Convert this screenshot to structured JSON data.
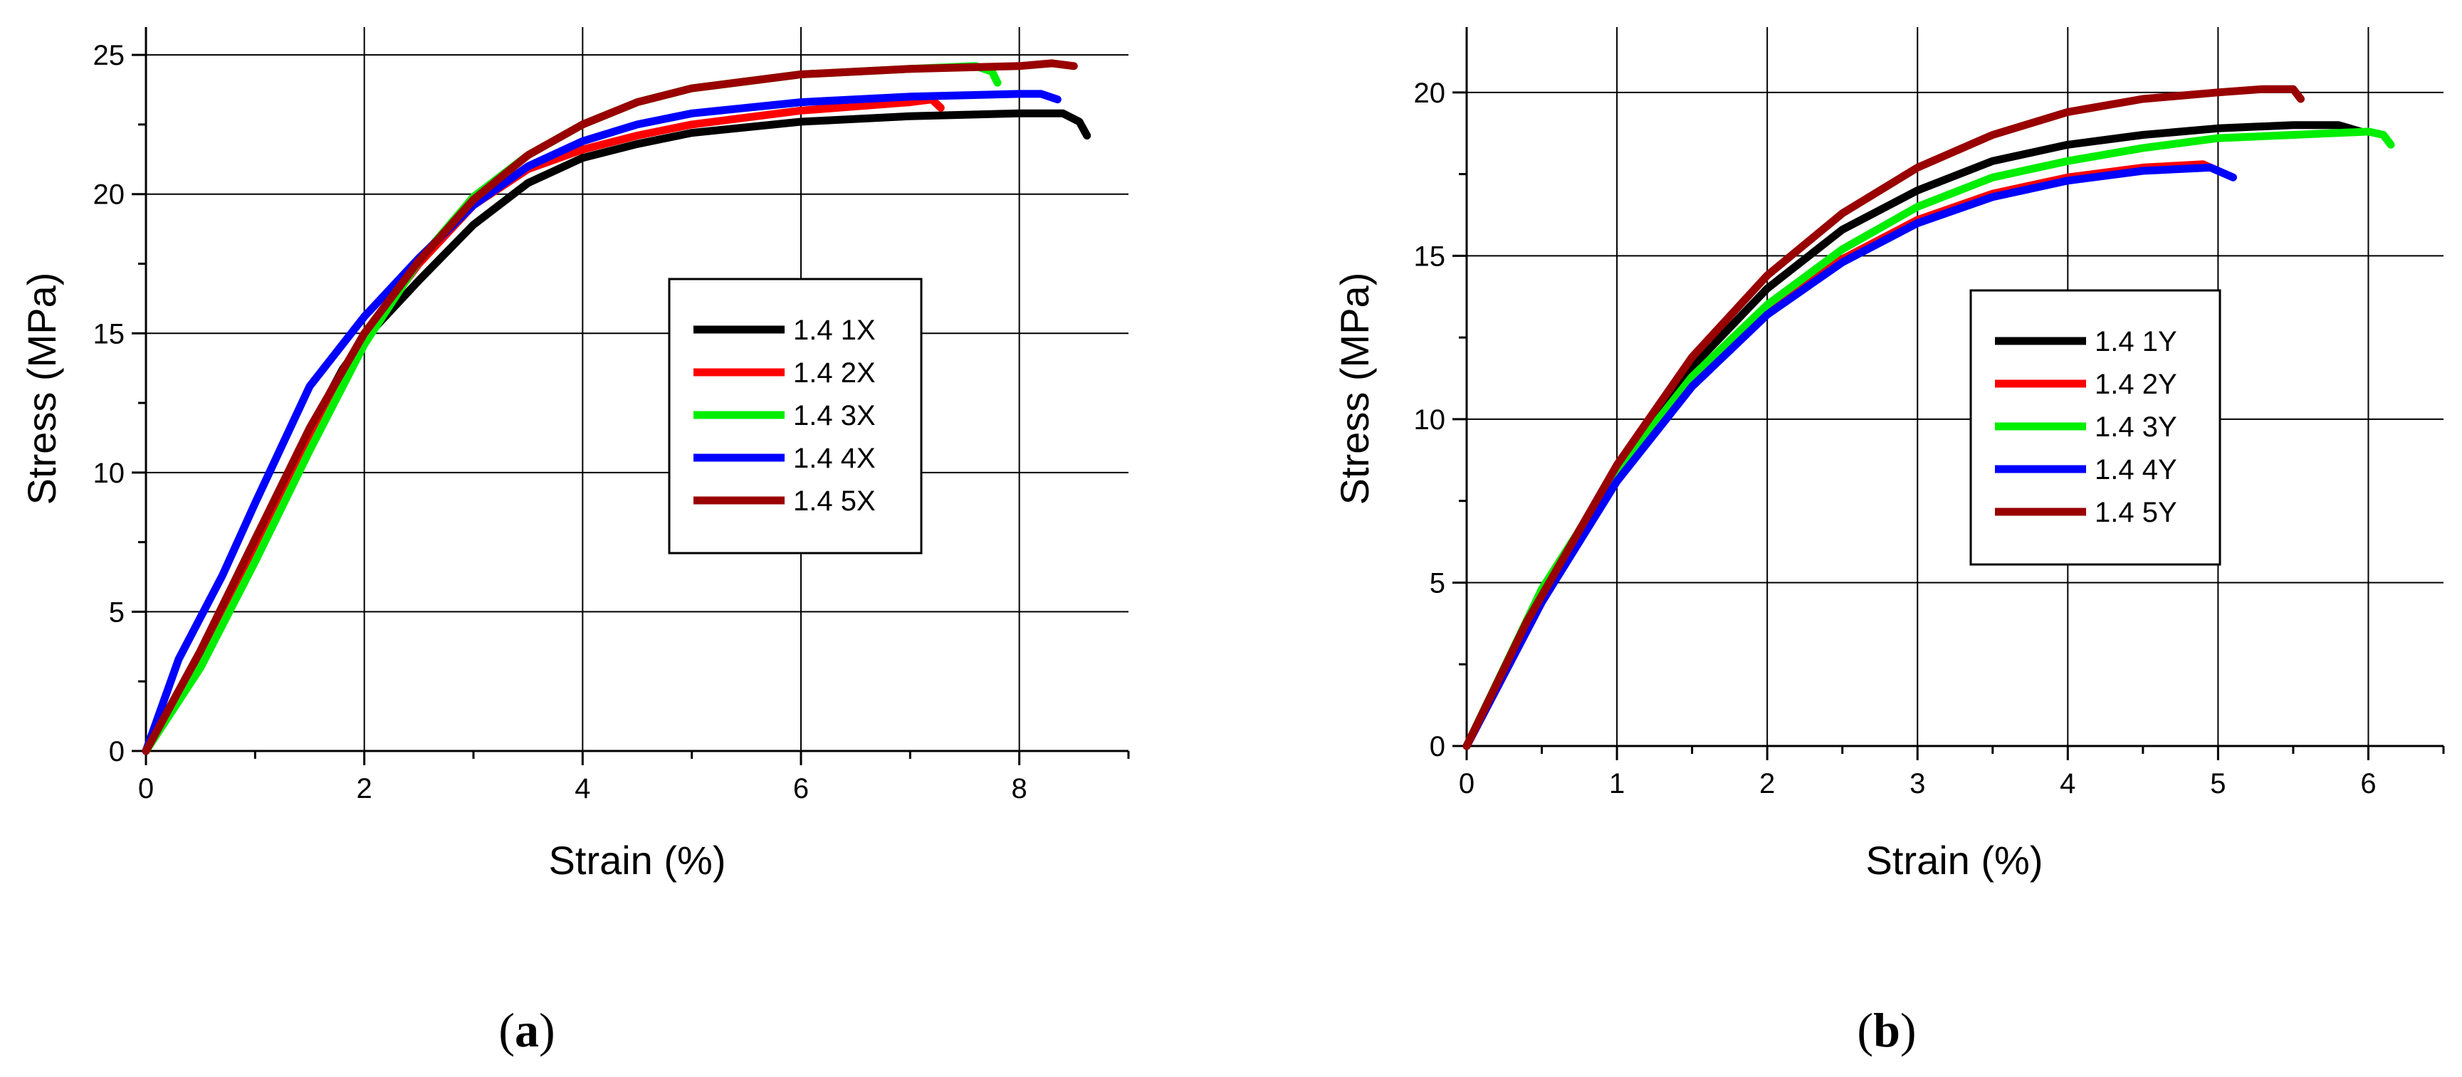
{
  "chart_data": [
    {
      "type": "line",
      "panel": "a",
      "xlabel": "Strain (%)",
      "ylabel": "Stress (MPa)",
      "xlim": [
        0,
        9
      ],
      "ylim": [
        0,
        26
      ],
      "xticks": [
        0,
        2,
        4,
        6,
        8
      ],
      "yticks": [
        0,
        5,
        10,
        15,
        20,
        25
      ],
      "grid": true,
      "legend_position": "center-right",
      "series": [
        {
          "name": "1.4 1X",
          "color": "#000000",
          "x": [
            0,
            0.5,
            1,
            1.5,
            1.8,
            2,
            2.5,
            3,
            3.5,
            4,
            4.5,
            5,
            6,
            7,
            8,
            8.4,
            8.55,
            8.62
          ],
          "y": [
            0,
            3.6,
            7.6,
            11.5,
            13.7,
            14.8,
            16.9,
            18.9,
            20.4,
            21.3,
            21.8,
            22.2,
            22.6,
            22.8,
            22.9,
            22.9,
            22.6,
            22.1
          ]
        },
        {
          "name": "1.4 2X",
          "color": "#ff0000",
          "x": [
            0,
            0.5,
            1,
            1.5,
            2,
            2.5,
            3,
            3.5,
            4,
            4.5,
            5,
            6,
            7,
            7.2,
            7.28
          ],
          "y": [
            0,
            3.5,
            7.4,
            11.4,
            14.9,
            17.5,
            19.6,
            20.9,
            21.6,
            22.1,
            22.5,
            23.0,
            23.3,
            23.4,
            23.1
          ]
        },
        {
          "name": "1.4 3X",
          "color": "#00ee00",
          "x": [
            0,
            0.5,
            1,
            1.5,
            2,
            2.5,
            3,
            3.5,
            4,
            4.5,
            5,
            6,
            7,
            7.6,
            7.75,
            7.8
          ],
          "y": [
            0,
            3.0,
            6.8,
            10.8,
            14.6,
            17.6,
            19.9,
            21.4,
            22.5,
            23.3,
            23.8,
            24.3,
            24.5,
            24.6,
            24.4,
            24.0
          ]
        },
        {
          "name": "1.4 4X",
          "color": "#0000ff",
          "x": [
            0,
            0.3,
            0.7,
            1,
            1.5,
            2,
            2.5,
            3,
            3.5,
            4,
            4.5,
            5,
            6,
            7,
            8,
            8.2,
            8.35
          ],
          "y": [
            0,
            3.3,
            6.3,
            8.9,
            13.1,
            15.6,
            17.7,
            19.6,
            21.0,
            21.9,
            22.5,
            22.9,
            23.3,
            23.5,
            23.6,
            23.6,
            23.4
          ]
        },
        {
          "name": "1.4 5X",
          "color": "#990000",
          "x": [
            0,
            0.5,
            1,
            1.5,
            2,
            2.5,
            3,
            3.5,
            4,
            4.5,
            5,
            6,
            7,
            8,
            8.3,
            8.5
          ],
          "y": [
            0,
            3.6,
            7.6,
            11.6,
            15.0,
            17.6,
            19.8,
            21.4,
            22.5,
            23.3,
            23.8,
            24.3,
            24.5,
            24.6,
            24.7,
            24.6
          ]
        }
      ]
    },
    {
      "type": "line",
      "panel": "b",
      "xlabel": "Strain (%)",
      "ylabel": "Stress (MPa)",
      "xlim": [
        0,
        6.5
      ],
      "ylim": [
        0,
        22
      ],
      "xticks": [
        0,
        1,
        2,
        3,
        4,
        5,
        6
      ],
      "yticks": [
        0,
        5,
        10,
        15,
        20
      ],
      "grid": true,
      "legend_position": "center-right",
      "series": [
        {
          "name": "1.4 1Y",
          "color": "#000000",
          "x": [
            0,
            0.5,
            1,
            1.5,
            2,
            2.5,
            3,
            3.5,
            4,
            4.5,
            5,
            5.5,
            5.8,
            5.95
          ],
          "y": [
            0,
            4.7,
            8.5,
            11.6,
            14.0,
            15.8,
            17.0,
            17.9,
            18.4,
            18.7,
            18.9,
            19.0,
            19.0,
            18.8
          ]
        },
        {
          "name": "1.4 2Y",
          "color": "#ff0000",
          "x": [
            0,
            0.5,
            1,
            1.5,
            2,
            2.5,
            3,
            3.5,
            4,
            4.5,
            4.9,
            5.0
          ],
          "y": [
            0,
            4.4,
            8.2,
            11.1,
            13.3,
            14.9,
            16.1,
            16.9,
            17.4,
            17.7,
            17.8,
            17.6
          ]
        },
        {
          "name": "1.4 3Y",
          "color": "#00ee00",
          "x": [
            0,
            0.5,
            1,
            1.5,
            2,
            2.5,
            3,
            3.5,
            4,
            4.5,
            5,
            5.5,
            6,
            6.1,
            6.15
          ],
          "y": [
            0,
            4.8,
            8.4,
            11.3,
            13.5,
            15.2,
            16.5,
            17.4,
            17.9,
            18.3,
            18.6,
            18.7,
            18.8,
            18.7,
            18.4
          ]
        },
        {
          "name": "1.4 4Y",
          "color": "#0000ff",
          "x": [
            0,
            0.5,
            1,
            1.5,
            2,
            2.5,
            3,
            3.5,
            4,
            4.5,
            4.95,
            5.1
          ],
          "y": [
            0,
            4.4,
            8.1,
            11.0,
            13.2,
            14.8,
            16.0,
            16.8,
            17.3,
            17.6,
            17.7,
            17.4
          ]
        },
        {
          "name": "1.4 5Y",
          "color": "#990000",
          "x": [
            0,
            0.4,
            1,
            1.5,
            2,
            2.5,
            3,
            3.5,
            4,
            4.5,
            5,
            5.3,
            5.5,
            5.55
          ],
          "y": [
            0,
            3.8,
            8.6,
            11.9,
            14.4,
            16.3,
            17.7,
            18.7,
            19.4,
            19.8,
            20.0,
            20.1,
            20.1,
            19.8
          ]
        }
      ]
    }
  ],
  "panels": [
    {
      "label_open": "(",
      "label_letter": "a",
      "label_close": ")"
    },
    {
      "label_open": "(",
      "label_letter": "b",
      "label_close": ")"
    }
  ]
}
